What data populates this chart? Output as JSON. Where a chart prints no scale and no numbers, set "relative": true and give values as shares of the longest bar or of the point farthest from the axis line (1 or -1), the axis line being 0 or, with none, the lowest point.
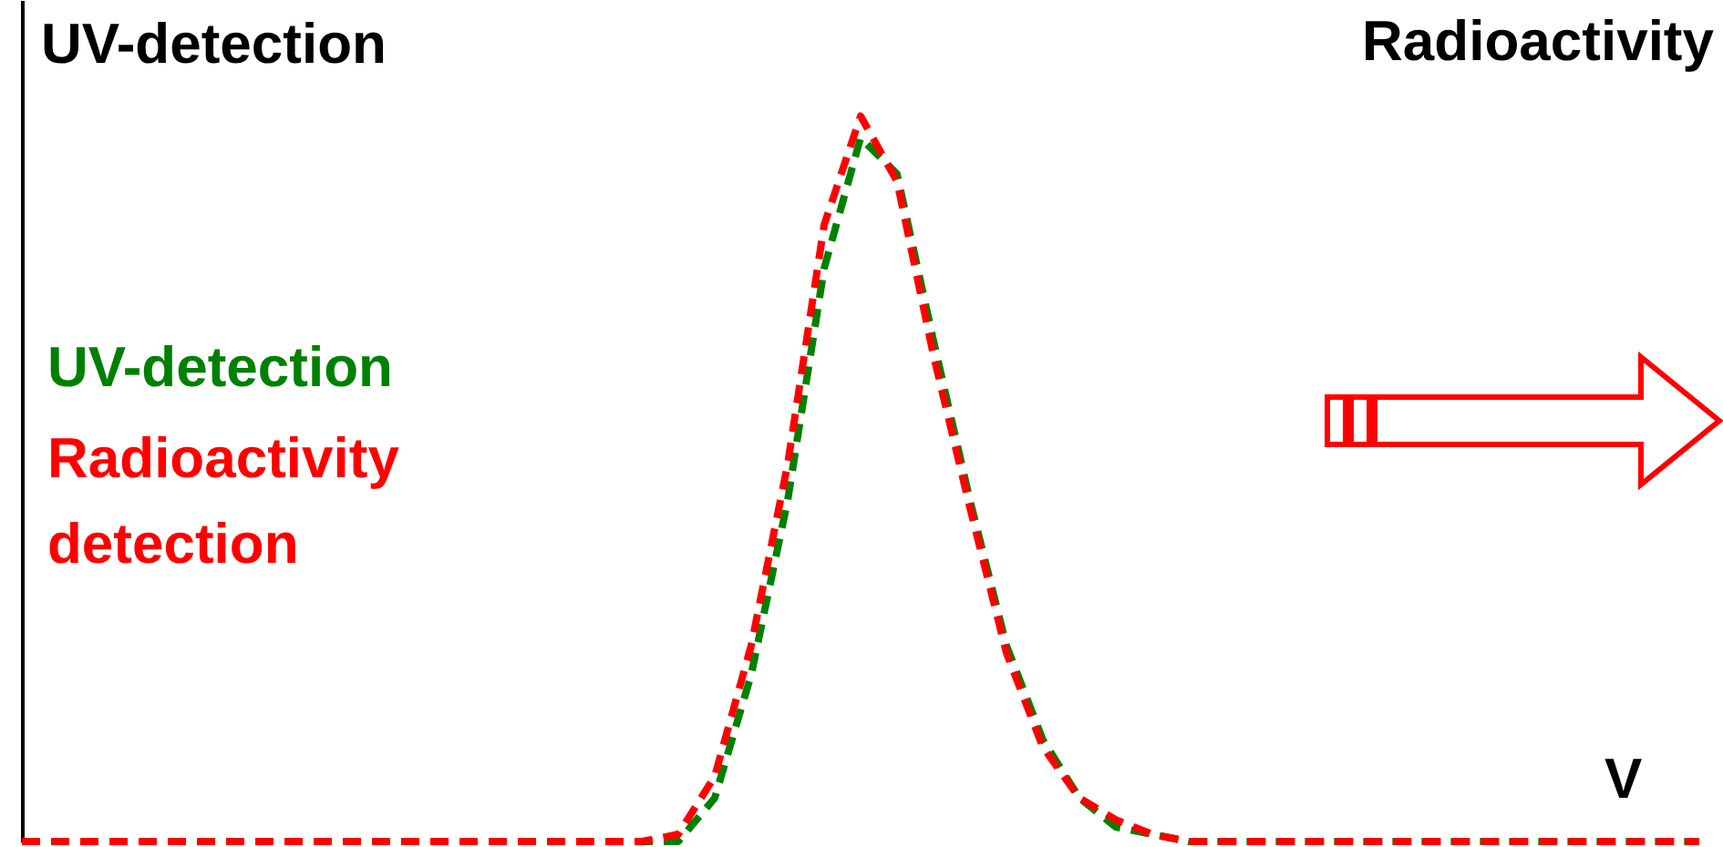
{
  "chart_data": {
    "type": "line",
    "relative": true,
    "ylabel": "UV-detection",
    "y2label": "Radioactivity",
    "xlabel": "V",
    "legend": "left",
    "line_style": "dashed",
    "categories": [
      null,
      null,
      null,
      null,
      null,
      null,
      null,
      null,
      null,
      null,
      null,
      null,
      null,
      null,
      null,
      null,
      null,
      null,
      null,
      null,
      null,
      null,
      null,
      null,
      null,
      null,
      null,
      null,
      null,
      null,
      null,
      null,
      null,
      null,
      null,
      null,
      null,
      null,
      null,
      null,
      null,
      null,
      null,
      null,
      null,
      null,
      null
    ],
    "series": [
      {
        "name": "UV-detection",
        "color": "#008000",
        "values": [
          null,
          null,
          null,
          null,
          null,
          null,
          null,
          null,
          null,
          null,
          null,
          null,
          null,
          null,
          null,
          null,
          0,
          0,
          0,
          0.06,
          0.23,
          0.47,
          0.79,
          0.97,
          0.92,
          0.69,
          0.47,
          0.27,
          0.14,
          0.06,
          0.02,
          0.01,
          0,
          0,
          0,
          0,
          0,
          0,
          0,
          0,
          0,
          0,
          0,
          0,
          0,
          0,
          0
        ]
      },
      {
        "name": "Radioactivity detection",
        "color": "#ff0000",
        "values": [
          0,
          0,
          0,
          0,
          0,
          0,
          0,
          0,
          0,
          0,
          0,
          0,
          0,
          0,
          0,
          0,
          0,
          0,
          0.01,
          0.09,
          0.27,
          0.52,
          0.85,
          1,
          0.91,
          0.67,
          0.46,
          0.26,
          0.13,
          0.06,
          0.03,
          0.01,
          0,
          0,
          0,
          0,
          0,
          0,
          0,
          0,
          0,
          0,
          0,
          0,
          0,
          0,
          0
        ]
      }
    ]
  }
}
